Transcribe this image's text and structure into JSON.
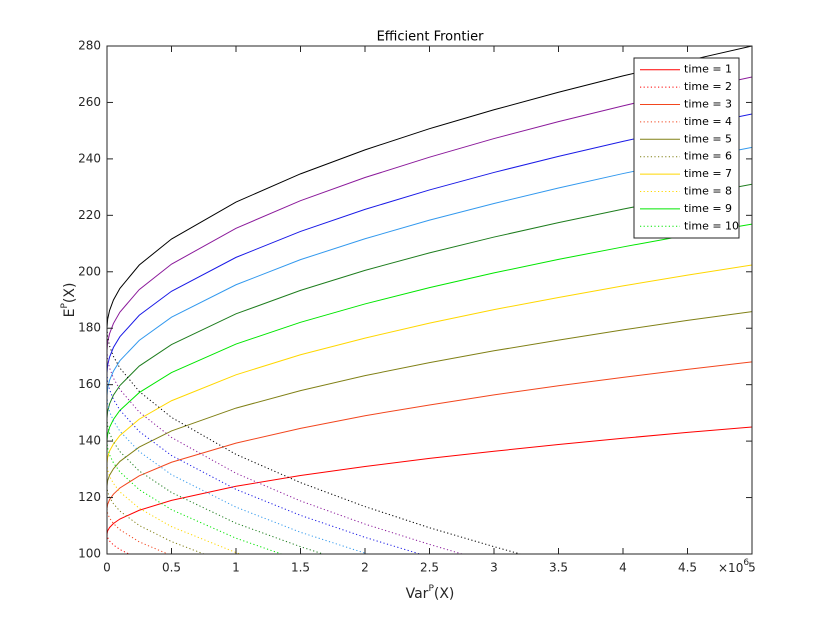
{
  "chart_data": {
    "type": "line",
    "title": "Efficient Frontier",
    "xlabel": [
      "Var",
      "P",
      "(X)"
    ],
    "ylabel": [
      "E",
      "P",
      "(X)"
    ],
    "x_multiplier": [
      "×10",
      "6"
    ],
    "xlim": [
      0,
      5
    ],
    "xticks": [
      0,
      0.5,
      1,
      1.5,
      2,
      2.5,
      3,
      3.5,
      4,
      4.5,
      5
    ],
    "ylim": [
      100,
      280
    ],
    "yticks": [
      100,
      120,
      140,
      160,
      180,
      200,
      220,
      240,
      260,
      280
    ],
    "legend_position": "northeast",
    "grid": false,
    "series": [
      {
        "name": "time = 1",
        "color": "#ff0000",
        "style": "solid",
        "x": [
          0,
          0.005,
          0.02,
          0.05,
          0.1,
          0.25,
          0.5,
          1,
          1.5,
          2,
          2.5,
          3,
          3.5,
          4,
          4.5,
          5
        ],
        "values": [
          107,
          108.2,
          109.4,
          110.8,
          112.4,
          115.5,
          119,
          124,
          127.8,
          131,
          133.9,
          136.4,
          138.8,
          141,
          143.1,
          145
        ]
      },
      {
        "name": "time = 2",
        "color": "#ff0000",
        "style": "dotted",
        "x": [
          0,
          0.005,
          0.02,
          0.05,
          0.1,
          0.1696
        ],
        "values": [
          107,
          105.8,
          104.6,
          103.2,
          101.6,
          100
        ]
      },
      {
        "name": "time = 3",
        "color": "#f2461e",
        "style": "solid",
        "x": [
          0,
          0.005,
          0.02,
          0.05,
          0.1,
          0.25,
          0.5,
          1,
          1.5,
          2,
          2.5,
          3,
          3.5,
          4,
          4.5,
          5
        ],
        "values": [
          116,
          117.6,
          119.3,
          121.2,
          123.4,
          127.7,
          132.5,
          139.3,
          144.5,
          149,
          152.8,
          156.4,
          159.6,
          162.6,
          165.4,
          168.1
        ]
      },
      {
        "name": "time = 4",
        "color": "#f2461e",
        "style": "dotted",
        "x": [
          0,
          0.005,
          0.02,
          0.05,
          0.1,
          0.25,
          0.4716
        ],
        "values": [
          116,
          114.4,
          112.7,
          110.8,
          108.6,
          104.3,
          100
        ]
      },
      {
        "name": "time = 5",
        "color": "#808016",
        "style": "solid",
        "x": [
          0,
          0.005,
          0.02,
          0.05,
          0.1,
          0.25,
          0.5,
          1,
          1.5,
          2,
          2.5,
          3,
          3.5,
          4,
          4.5,
          5
        ],
        "values": [
          124,
          126,
          127.9,
          130.2,
          132.8,
          137.9,
          143.6,
          151.7,
          157.9,
          163.2,
          167.8,
          172,
          175.8,
          179.4,
          182.8,
          185.9
        ]
      },
      {
        "name": "time = 6",
        "color": "#808016",
        "style": "dotted",
        "x": [
          0,
          0.005,
          0.02,
          0.05,
          0.1,
          0.25,
          0.5,
          0.7507
        ],
        "values": [
          124,
          122,
          120.1,
          117.8,
          115.2,
          110.1,
          104.4,
          100
        ]
      },
      {
        "name": "time = 7",
        "color": "#ffd700",
        "style": "solid",
        "x": [
          0,
          0.005,
          0.02,
          0.05,
          0.1,
          0.25,
          0.5,
          1,
          1.5,
          2,
          2.5,
          3,
          3.5,
          4,
          4.5,
          5
        ],
        "values": [
          132,
          134.2,
          136.5,
          139,
          142,
          147.8,
          154.3,
          163.5,
          170.6,
          176.5,
          181.8,
          186.6,
          190.9,
          195,
          198.8,
          202.4
        ]
      },
      {
        "name": "time = 8",
        "color": "#ffd700",
        "style": "dotted",
        "x": [
          0,
          0.005,
          0.02,
          0.05,
          0.1,
          0.25,
          0.5,
          1,
          1.032
        ],
        "values": [
          132,
          129.8,
          127.5,
          125,
          122,
          116.2,
          109.7,
          100.5,
          100
        ]
      },
      {
        "name": "time = 9",
        "color": "#00e600",
        "style": "solid",
        "x": [
          0,
          0.005,
          0.02,
          0.05,
          0.1,
          0.25,
          0.5,
          1,
          1.5,
          2,
          2.5,
          3,
          3.5,
          4,
          4.5,
          5
        ],
        "values": [
          140,
          142.4,
          144.9,
          147.7,
          150.9,
          157.2,
          164.3,
          174.4,
          182.1,
          188.6,
          194.4,
          199.6,
          204.4,
          208.8,
          213,
          216.9
        ]
      },
      {
        "name": "time = 10",
        "color": "#00e600",
        "style": "dotted",
        "x": [
          0,
          0.005,
          0.02,
          0.05,
          0.1,
          0.25,
          0.5,
          1,
          1.352
        ],
        "values": [
          140,
          137.6,
          135.1,
          132.3,
          129.1,
          122.8,
          115.7,
          105.6,
          100
        ]
      },
      {
        "color": "#1e7d1e",
        "style": "solid",
        "x": [
          0,
          0.005,
          0.02,
          0.05,
          0.1,
          0.25,
          0.5,
          1,
          1.5,
          2,
          2.5,
          3,
          3.5,
          4,
          4.5,
          5
        ],
        "values": [
          148,
          150.6,
          153.2,
          156.3,
          159.7,
          166.6,
          174.2,
          185.1,
          193.4,
          200.5,
          206.7,
          212.3,
          217.4,
          222.2,
          226.7,
          231
        ]
      },
      {
        "color": "#1e7d1e",
        "style": "dotted",
        "x": [
          0,
          0.005,
          0.02,
          0.05,
          0.1,
          0.25,
          0.5,
          1,
          1.5,
          1.674
        ],
        "values": [
          148,
          145.4,
          142.8,
          139.7,
          136.3,
          129.4,
          121.8,
          110.9,
          102.6,
          100
        ]
      },
      {
        "color": "#3399ee",
        "style": "solid",
        "x": [
          0,
          0.005,
          0.02,
          0.05,
          0.1,
          0.25,
          0.5,
          1,
          1.5,
          2,
          2.5,
          3,
          3.5,
          4,
          4.5,
          5
        ],
        "values": [
          156,
          158.8,
          161.6,
          164.8,
          168.5,
          175.7,
          183.9,
          195.4,
          204.3,
          211.7,
          218.3,
          224.2,
          229.7,
          234.8,
          239.6,
          244.1
        ]
      },
      {
        "color": "#3399ee",
        "style": "dotted",
        "x": [
          0,
          0.005,
          0.02,
          0.05,
          0.1,
          0.25,
          0.5,
          1,
          1.5,
          2,
          2.02
        ],
        "values": [
          156,
          153.2,
          150.4,
          147.2,
          143.5,
          136.3,
          128.1,
          116.6,
          107.7,
          100.3,
          100
        ]
      },
      {
        "color": "#1a1ae6",
        "style": "solid",
        "x": [
          0,
          0.005,
          0.02,
          0.05,
          0.1,
          0.25,
          0.5,
          1,
          1.5,
          2,
          2.5,
          3,
          3.5,
          4,
          4.5,
          5
        ],
        "values": [
          164,
          166.9,
          169.8,
          173.2,
          177,
          184.6,
          193.1,
          205.1,
          214.3,
          222.1,
          229,
          235.2,
          240.9,
          246.2,
          251.2,
          255.9
        ]
      },
      {
        "color": "#1a1ae6",
        "style": "dotted",
        "x": [
          0,
          0.005,
          0.02,
          0.05,
          0.1,
          0.25,
          0.5,
          1,
          1.5,
          2,
          2.425
        ],
        "values": [
          164,
          161.1,
          158.2,
          154.8,
          151,
          143.4,
          134.9,
          122.9,
          113.7,
          105.9,
          100
        ]
      },
      {
        "color": "#8b1a9b",
        "style": "solid",
        "x": [
          0,
          0.005,
          0.02,
          0.05,
          0.1,
          0.25,
          0.5,
          1,
          1.5,
          2,
          2.5,
          3,
          3.5,
          4,
          4.5,
          5
        ],
        "values": [
          172,
          175.1,
          178.1,
          181.7,
          185.7,
          193.7,
          202.7,
          215.4,
          225.2,
          233.4,
          240.6,
          247.2,
          253.2,
          258.8,
          264.1,
          269
        ]
      },
      {
        "color": "#8b1a9b",
        "style": "dotted",
        "x": [
          0,
          0.005,
          0.02,
          0.05,
          0.1,
          0.25,
          0.5,
          1,
          1.5,
          2,
          2.5,
          2.752
        ],
        "values": [
          172,
          168.9,
          165.9,
          162.3,
          158.3,
          150.3,
          141.3,
          128.6,
          118.8,
          110.6,
          103.4,
          100
        ]
      },
      {
        "color": "#000000",
        "style": "solid",
        "x": [
          0,
          0.005,
          0.02,
          0.05,
          0.1,
          0.25,
          0.5,
          1,
          1.5,
          2,
          2.5,
          3,
          3.5,
          4,
          4.5,
          5
        ],
        "values": [
          180,
          183.2,
          186.3,
          190,
          194.1,
          202.4,
          211.6,
          224.7,
          234.7,
          243.2,
          250.7,
          257.4,
          263.6,
          269.4,
          274.8,
          280
        ]
      },
      {
        "color": "#000000",
        "style": "dotted",
        "x": [
          0,
          0.005,
          0.02,
          0.05,
          0.1,
          0.25,
          0.5,
          1,
          1.5,
          2,
          2.5,
          3,
          3.203
        ],
        "values": [
          180,
          176.8,
          173.7,
          170,
          165.9,
          157.6,
          148.4,
          135.3,
          125.3,
          116.8,
          109.3,
          102.6,
          100
        ]
      }
    ]
  }
}
